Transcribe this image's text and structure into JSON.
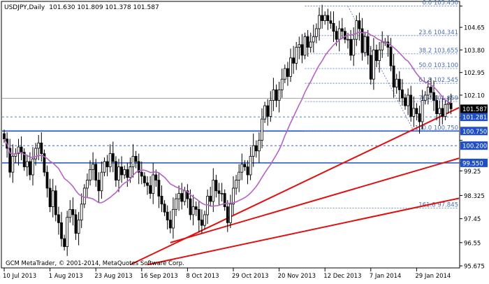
{
  "header": {
    "symbol": "USDJPY,Daily",
    "ohlc": "101.630 101.809 101.378 101.587"
  },
  "copyright": "GCM MetaTrader, © 2001-2014, MetaQuotes Software Corp.",
  "colors": {
    "background": "#ffffff",
    "candle": "#000000",
    "moving_average": "#b463c4",
    "trendline": "#e01010",
    "horizontal_level": "#1f4fc8",
    "fibo": "#4a6fb5",
    "current_price_bg": "#000000",
    "level_label_bg": "#1f4fc8"
  },
  "chart_data": {
    "type": "candlestick",
    "symbol": "USDJPY",
    "timeframe": "Daily",
    "last": {
      "open": 101.63,
      "high": 101.809,
      "low": 101.378,
      "close": 101.587
    },
    "ylim": [
      95.625,
      105.6
    ],
    "y_ticks": [
      "105.45",
      "104.65",
      "103.80",
      "102.95",
      "102.10",
      "101.25",
      "100.40",
      "99.55",
      "99.25",
      "98.325",
      "97.45",
      "96.55",
      "95.675"
    ],
    "y_tick_values": [
      105.45,
      104.65,
      103.8,
      102.95,
      102.1,
      101.25,
      100.4,
      99.55,
      99.25,
      98.325,
      97.45,
      96.55,
      95.675
    ],
    "y_tick_labels": [
      "",
      "104.65",
      "103.80",
      "102.95",
      "102.10",
      "",
      "",
      "",
      "99.25",
      "98.325",
      "97.45",
      "96.55",
      "95.675"
    ],
    "x_ticks": [
      "10 Jul 2013",
      "1 Aug 2013",
      "23 Aug 2013",
      "16 Sep 2013",
      "8 Oct 2013",
      "29 Oct 2013",
      "20 Nov 2013",
      "12 Dec 2013",
      "7 Jan 2014",
      "29 Jan 2014"
    ],
    "x_tick_bars": [
      0,
      16,
      32,
      48,
      64,
      80,
      96,
      112,
      128,
      144
    ],
    "n_bars": 158,
    "closes": [
      100.45,
      100.1,
      99.2,
      99.8,
      99.9,
      100.15,
      99.95,
      99.4,
      99.6,
      99.1,
      99.7,
      100.1,
      100.3,
      99.9,
      99.2,
      98.6,
      97.9,
      98.5,
      97.6,
      97.3,
      96.7,
      96.4,
      97.5,
      97.8,
      97.6,
      96.9,
      97.4,
      98.0,
      98.6,
      98.9,
      99.3,
      99.5,
      98.9,
      98.5,
      99.2,
      99.6,
      99.4,
      99.9,
      99.6,
      98.9,
      99.4,
      99.1,
      99.3,
      99.0,
      99.4,
      99.8,
      99.6,
      99.2,
      99.05,
      98.8,
      98.7,
      98.4,
      99.1,
      98.9,
      98.3,
      98.0,
      97.7,
      97.4,
      97.1,
      97.8,
      98.2,
      98.4,
      98.1,
      98.5,
      98.2,
      97.6,
      97.9,
      97.8,
      97.4,
      97.2,
      97.6,
      98.3,
      98.1,
      98.9,
      98.5,
      98.4,
      98.4,
      97.9,
      97.3,
      98.0,
      98.6,
      98.9,
      99.2,
      99.5,
      99.4,
      99.1,
      99.8,
      100.2,
      100.0,
      100.4,
      101.2,
      101.7,
      101.3,
      101.9,
      102.3,
      101.9,
      102.3,
      102.7,
      103.1,
      102.8,
      103.5,
      103.3,
      103.9,
      104.0,
      103.6,
      104.3,
      103.9,
      104.1,
      104.3,
      104.6,
      105.1,
      104.9,
      105.1,
      104.9,
      104.8,
      104.5,
      104.2,
      104.6,
      104.5,
      104.2,
      104.2,
      103.6,
      104.2,
      104.9,
      104.6,
      103.7,
      104.3,
      103.6,
      102.7,
      103.8,
      103.4,
      103.8,
      104.1,
      104.1,
      103.9,
      103.2,
      102.4,
      102.7,
      102.3,
      102.0,
      101.7,
      102.1,
      101.3,
      101.6,
      101.4,
      101.1,
      101.9,
      102.1,
      102.4,
      102.2,
      101.9,
      101.4,
      101.6,
      101.3,
      101.75,
      101.8,
      101.587
    ],
    "moving_average_period": 20,
    "horizontal_levels": [
      {
        "price": 101.281,
        "style": "dashed",
        "label": "101.281"
      },
      {
        "price": 100.75,
        "style": "solid",
        "label": "100.750"
      },
      {
        "price": 100.2,
        "style": "dashed",
        "label": "100.200"
      },
      {
        "price": 99.55,
        "style": "solid",
        "label": "99.550"
      },
      {
        "price": 101.98,
        "style": "dotted-gray",
        "label": ""
      }
    ],
    "current_price": {
      "price": 101.587,
      "label": "101.587"
    },
    "fibo_levels": [
      {
        "ratio_label": "0.0",
        "price": 105.45,
        "text": "0.0 105.450"
      },
      {
        "ratio_label": "23.6",
        "price": 104.341,
        "text": "23.6 104.341"
      },
      {
        "ratio_label": "38.2",
        "price": 103.655,
        "text": "38.2 103.655"
      },
      {
        "ratio_label": "50.0",
        "price": 103.1,
        "text": "50.0 103.100"
      },
      {
        "ratio_label": "61.8",
        "price": 102.545,
        "text": "61.8 102.545"
      },
      {
        "ratio_label": "76.4",
        "price": 101.859,
        "text": "76.4 101.859"
      },
      {
        "ratio_label": "100.0",
        "price": 100.75,
        "text": "100.0 100.750"
      },
      {
        "ratio_label": "161.8",
        "price": 97.845,
        "text": "161.8 97.845"
      }
    ],
    "fibo_line": {
      "from_bar": 120,
      "from_price": 105.45,
      "to_bar": 143,
      "to_price": 100.75
    },
    "trendlines": [
      {
        "from_bar": 44,
        "from_price": 95.72,
        "to_bar": 158,
        "to_price": 101.587
      },
      {
        "from_bar": 58,
        "from_price": 96.55,
        "to_bar": 158,
        "to_price": 99.7
      },
      {
        "from_bar": 50,
        "from_price": 95.72,
        "to_bar": 158,
        "to_price": 98.2
      }
    ],
    "grid": false
  }
}
